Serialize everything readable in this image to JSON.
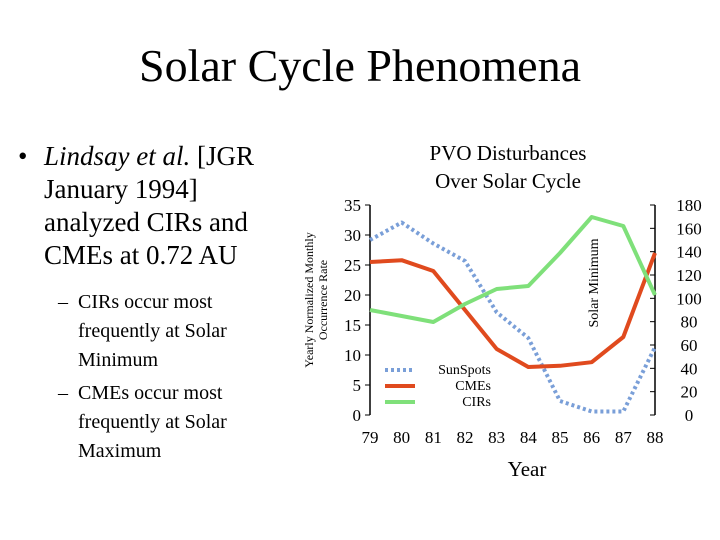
{
  "slide": {
    "title": "Solar Cycle Phenomena",
    "bullet": {
      "marker": "•",
      "author": "Lindsay et al.",
      "text": "[JGR January 1994] analyzed CIRs and CMEs at 0.72 AU",
      "subs": [
        {
          "marker": "–",
          "text": "CIRs occur most frequently at Solar Minimum"
        },
        {
          "marker": "–",
          "text": "CMEs occur most frequently at Solar Maximum"
        }
      ]
    }
  },
  "chart_data": {
    "type": "line",
    "title": "PVO Disturbances Over Solar Cycle",
    "xlabel": "Year",
    "ylabel_left": "Yearly Normalized Monthly Occurrence Rate",
    "ylabel_right": "Solar Minimum",
    "x": [
      79,
      80,
      81,
      82,
      83,
      84,
      85,
      86,
      87,
      88
    ],
    "x_ticks": [
      "79",
      "80",
      "81",
      "82",
      "83",
      "84",
      "85",
      "86",
      "87",
      "88"
    ],
    "ylim_left": [
      0,
      35
    ],
    "y_ticks_left": [
      "0",
      "5",
      "10",
      "15",
      "20",
      "25",
      "30",
      "35"
    ],
    "ylim_right": [
      0,
      180
    ],
    "y_ticks_right": [
      "0",
      "20",
      "40",
      "60",
      "80",
      "100",
      "120",
      "140",
      "160",
      "180"
    ],
    "legend_position": "bottom-center",
    "series": [
      {
        "name": "SunSpots",
        "axis": "right",
        "style": "dotted",
        "color": "#7a9fd8",
        "values": [
          150,
          165,
          147,
          132,
          88,
          66,
          12,
          3,
          3,
          58
        ]
      },
      {
        "name": "CMEs",
        "axis": "left",
        "style": "solid",
        "color": "#e04a1e",
        "values": [
          25.5,
          25.8,
          24,
          17.5,
          11,
          8,
          8.2,
          8.8,
          13,
          27
        ]
      },
      {
        "name": "CIRs",
        "axis": "left",
        "style": "solid",
        "color": "#7fe07a",
        "values": [
          17.5,
          16.5,
          15.5,
          18.5,
          21,
          21.5,
          27,
          33,
          31.5,
          20
        ]
      }
    ]
  }
}
